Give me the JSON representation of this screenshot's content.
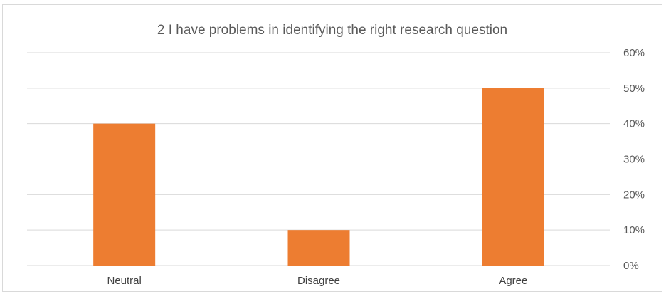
{
  "chart_data": {
    "type": "bar",
    "title": "2 I have problems in identifying the right research question",
    "categories": [
      "Neutral",
      "Disagree",
      "Agree"
    ],
    "values": [
      0.4,
      0.1,
      0.5
    ],
    "ylim": [
      0,
      0.6
    ],
    "yticks": [
      "0%",
      "10%",
      "20%",
      "30%",
      "40%",
      "50%",
      "60%"
    ],
    "y_axis_position": "right",
    "grid": true,
    "legend": "none",
    "bar_color": "#ED7D31"
  }
}
